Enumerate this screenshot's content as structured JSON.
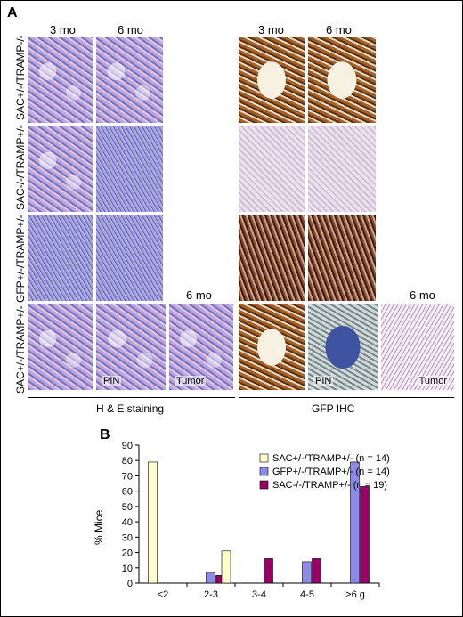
{
  "panel_a": {
    "letter": "A",
    "he_cols": [
      "3 mo",
      "6 mo"
    ],
    "ihc_cols": [
      "3 mo",
      "6 mo"
    ],
    "extra_col": "6 mo",
    "rows": [
      "SAC+/-/TRAMP-/-",
      "SAC-/-/TRAMP+/-",
      "GFP+/-/TRAMP+/-",
      "SAC+/-/TRAMP+/-"
    ],
    "tile_labels": {
      "he_pin": "PIN",
      "he_tumor": "Tumor",
      "ihc_pin": "PIN",
      "ihc_tumor": "Tumor"
    },
    "he_group": "H & E staining",
    "ihc_group": "GFP IHC"
  },
  "panel_b": {
    "letter": "B",
    "y_label": "% Mice"
  },
  "chart_data": {
    "type": "bar",
    "categories": [
      "<2",
      "2-3",
      "3-4",
      "4-5",
      ">6 g"
    ],
    "series": [
      {
        "name": "SAC+/-/TRAMP+/- (n = 14)",
        "color": "#ffffcc",
        "values": [
          79,
          0,
          0,
          0,
          0
        ]
      },
      {
        "name": "GFP+/-/TRAMP+/- (n = 14)",
        "color": "#8c8ce6",
        "values": [
          0,
          7,
          0,
          14,
          79
        ]
      },
      {
        "name": "SAC-/-/TRAMP+/- (n = 19)",
        "color": "#990066",
        "values": [
          0,
          5,
          16,
          16,
          63
        ]
      }
    ],
    "extra_bar": {
      "category_index": 1,
      "series_index": 0,
      "value": 21
    },
    "ylim": [
      0,
      90
    ],
    "yticks": [
      0,
      10,
      20,
      30,
      40,
      50,
      60,
      70,
      80,
      90
    ],
    "ylabel": "% Mice",
    "legend_position": "top-right",
    "grid": false
  }
}
